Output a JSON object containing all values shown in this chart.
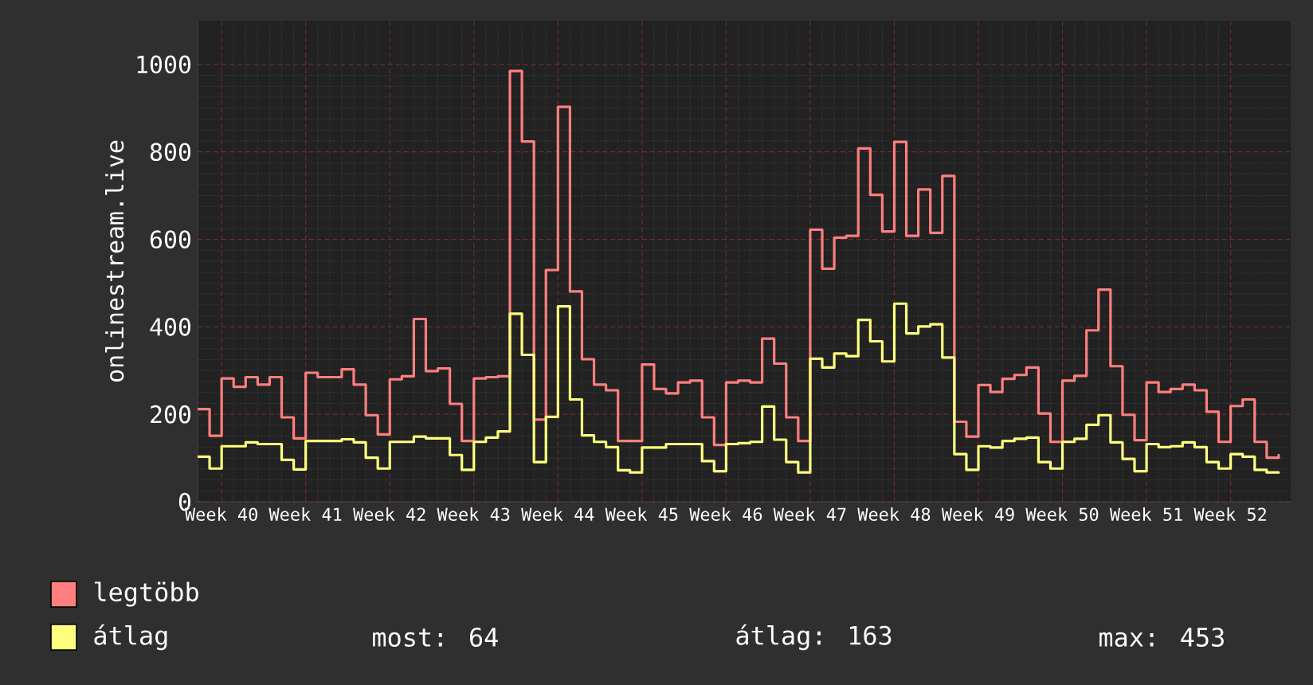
{
  "chart_data": {
    "type": "step",
    "ylabel": "onlinestream.live",
    "categories": [
      null,
      null,
      "Week 40",
      null,
      null,
      null,
      null,
      null,
      null,
      "Week 41",
      null,
      null,
      null,
      null,
      null,
      null,
      "Week 42",
      null,
      null,
      null,
      null,
      null,
      null,
      "Week 43",
      null,
      null,
      null,
      null,
      null,
      null,
      "Week 44",
      null,
      null,
      null,
      null,
      null,
      null,
      "Week 45",
      null,
      null,
      null,
      null,
      null,
      null,
      "Week 46",
      null,
      null,
      null,
      null,
      null,
      null,
      "Week 47",
      null,
      null,
      null,
      null,
      null,
      null,
      "Week 48",
      null,
      null,
      null,
      null,
      null,
      null,
      "Week 49",
      null,
      null,
      null,
      null,
      null,
      null,
      "Week 50",
      null,
      null,
      null,
      null,
      null,
      null,
      "Week 51",
      null,
      null,
      null,
      null,
      null,
      null,
      "Week 52",
      null,
      null,
      null,
      null
    ],
    "ylim": [
      0,
      1100
    ],
    "yticks": [
      0,
      200,
      400,
      600,
      800,
      1000
    ],
    "grid": true,
    "legend": "bottom",
    "series": [
      {
        "name": "legtöbb",
        "color": "#ff7f7f",
        "values": [
          212,
          151,
          282,
          263,
          285,
          268,
          285,
          193,
          145,
          295,
          285,
          285,
          303,
          268,
          198,
          154,
          280,
          287,
          418,
          299,
          305,
          224,
          139,
          282,
          285,
          287,
          985,
          824,
          188,
          530,
          903,
          481,
          326,
          268,
          255,
          139,
          139,
          314,
          258,
          248,
          273,
          277,
          193,
          130,
          273,
          277,
          273,
          373,
          316,
          193,
          139,
          622,
          533,
          604,
          608,
          808,
          702,
          618,
          823,
          608,
          714,
          615,
          745,
          183,
          149,
          267,
          251,
          281,
          290,
          307,
          202,
          137,
          277,
          288,
          392,
          485,
          310,
          199,
          141,
          273,
          251,
          258,
          268,
          255,
          206,
          137,
          219,
          234,
          137,
          101,
          107
        ]
      },
      {
        "name": "átlag",
        "color": "#ffff7f",
        "values": [
          103,
          76,
          127,
          127,
          136,
          132,
          132,
          96,
          74,
          139,
          139,
          139,
          143,
          136,
          101,
          76,
          137,
          137,
          149,
          145,
          145,
          107,
          73,
          137,
          147,
          161,
          430,
          336,
          91,
          194,
          447,
          234,
          152,
          137,
          125,
          72,
          67,
          124,
          124,
          132,
          132,
          132,
          93,
          70,
          132,
          134,
          137,
          218,
          142,
          91,
          67,
          327,
          307,
          339,
          333,
          416,
          367,
          321,
          453,
          385,
          401,
          406,
          330,
          109,
          73,
          127,
          124,
          139,
          144,
          147,
          91,
          76,
          137,
          144,
          176,
          198,
          136,
          98,
          70,
          132,
          125,
          127,
          136,
          125,
          91,
          76,
          109,
          103,
          73,
          67,
          67
        ]
      }
    ],
    "annotations": [
      "most: 64",
      "átlag: 163",
      "max: 453"
    ]
  }
}
